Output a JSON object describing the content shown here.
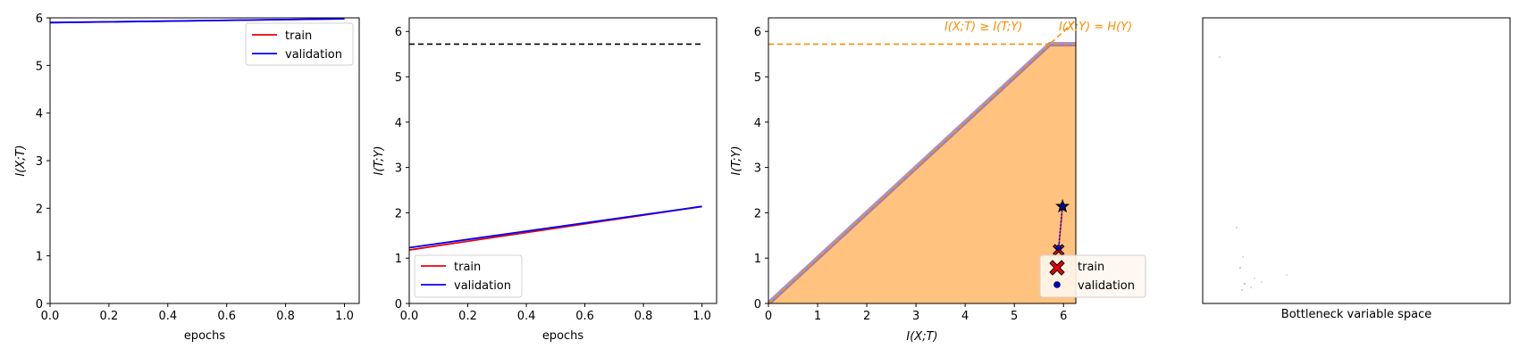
{
  "chart_data": [
    {
      "type": "line",
      "xlabel": "epochs",
      "ylabel": "I(X;T)",
      "xlim": [
        0,
        1.05
      ],
      "ylim": [
        0,
        6
      ],
      "xticks": [
        "0.0",
        "0.2",
        "0.4",
        "0.6",
        "0.8",
        "1.0"
      ],
      "yticks": [
        "0",
        "1",
        "2",
        "3",
        "4",
        "5",
        "6"
      ],
      "legend": "top-right",
      "series": [
        {
          "name": "train",
          "color": "#e8000b",
          "x": [
            0,
            1
          ],
          "y": [
            5.9,
            5.98
          ]
        },
        {
          "name": "validation",
          "color": "#0000ff",
          "x": [
            0,
            1
          ],
          "y": [
            5.9,
            5.98
          ]
        }
      ]
    },
    {
      "type": "line",
      "xlabel": "epochs",
      "ylabel": "I(T;Y)",
      "xlim": [
        0,
        1.05
      ],
      "ylim": [
        0,
        6.3
      ],
      "xticks": [
        "0.0",
        "0.2",
        "0.4",
        "0.6",
        "0.8",
        "1.0"
      ],
      "yticks": [
        "0",
        "1",
        "2",
        "3",
        "4",
        "5",
        "6"
      ],
      "legend": "bottom-left",
      "reference_line": {
        "y": 5.72,
        "color": "#000000",
        "style": "dashed"
      },
      "series": [
        {
          "name": "train",
          "color": "#e8000b",
          "x": [
            0,
            1
          ],
          "y": [
            1.18,
            2.14
          ]
        },
        {
          "name": "validation",
          "color": "#0000ff",
          "x": [
            0,
            1
          ],
          "y": [
            1.23,
            2.14
          ]
        }
      ]
    },
    {
      "type": "scatter",
      "xlabel": "I(X;T)",
      "ylabel": "I(T;Y)",
      "xlim": [
        0,
        6.25
      ],
      "ylim": [
        0,
        6.3
      ],
      "xticks": [
        "0",
        "1",
        "2",
        "3",
        "4",
        "5",
        "6"
      ],
      "yticks": [
        "0",
        "1",
        "2",
        "3",
        "4",
        "5",
        "6"
      ],
      "legend": "bottom-right",
      "feasible_region": {
        "color": "#ffc37f",
        "boundary": [
          [
            0,
            0
          ],
          [
            5.72,
            5.72
          ],
          [
            6.25,
            5.72
          ]
        ]
      },
      "hy": 5.72,
      "annotations": [
        "I(X;T) ≥ I(T;Y)",
        "I(X;Y) = H(Y)"
      ],
      "series": [
        {
          "name": "train",
          "color": "#e8000b",
          "marker": "X",
          "points": [
            [
              5.9,
              1.18
            ],
            [
              5.98,
              2.14
            ]
          ]
        },
        {
          "name": "validation",
          "color": "#0000cc",
          "marker": "o",
          "points": [
            [
              5.9,
              1.23
            ],
            [
              5.98,
              2.14
            ]
          ]
        }
      ]
    },
    {
      "type": "scatter",
      "xlabel": "Bottleneck variable space",
      "ticks": "none",
      "points": "faint gray dots"
    }
  ]
}
